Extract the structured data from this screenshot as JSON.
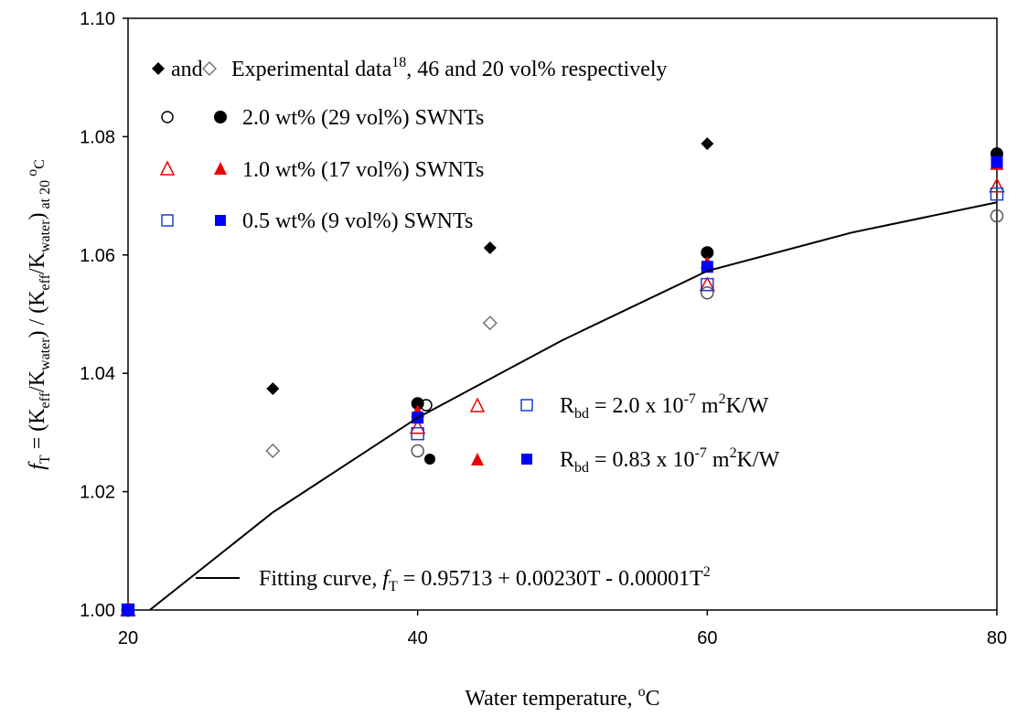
{
  "chart_data": {
    "type": "scatter",
    "xlim": [
      20,
      80
    ],
    "ylim": [
      1.0,
      1.1
    ],
    "xticks": [
      20,
      40,
      60,
      80
    ],
    "yticks": [
      {
        "value": 1.0,
        "label": "1.00"
      },
      1.02,
      1.04,
      1.06,
      1.08,
      {
        "value": 1.1,
        "label": "1.10"
      }
    ],
    "x_label": [
      "Water temperature, ",
      "o",
      "C"
    ],
    "y_label": [
      "f",
      "T",
      " = (K",
      "eff",
      "/K",
      "water",
      ") / (K",
      "eff",
      "/K",
      "water",
      ")",
      " at 20 ",
      "o",
      "C"
    ],
    "legend_text": {
      "experimental": [
        "and",
        "Experimental data",
        "18",
        ", 46 and 20 vol% respectively"
      ],
      "swnt_2_0": "2.0 wt% (29 vol%) SWNTs",
      "swnt_1_0": "1.0 wt% (17 vol%) SWNTs",
      "swnt_0_5": "0.5 wt% (9 vol%) SWNTs",
      "rbd_open": [
        "R",
        "bd",
        " = 2.0 x 10",
        "-7",
        " m",
        "2",
        "K/W"
      ],
      "rbd_filled": [
        "R",
        "bd",
        " = 0.83 x 10",
        "-7",
        " m",
        "2",
        "K/W"
      ],
      "fit": [
        "Fitting curve, ",
        "f",
        "T",
        " = 0.95713 + 0.00230T - 0.00001T",
        "2"
      ]
    },
    "series": [
      {
        "marker": "diamond",
        "filled": false,
        "color": "#777777",
        "x": [
          20,
          30,
          45
        ],
        "values": [
          1.0,
          1.0269,
          1.0485
        ]
      },
      {
        "marker": "circle",
        "filled": false,
        "color": "#555555",
        "x": [
          20,
          40,
          60,
          80
        ],
        "values": [
          1.0,
          1.0269,
          1.0536,
          1.0666
        ]
      },
      {
        "marker": "triangle",
        "filled": false,
        "color": "#ee0000",
        "x": [
          20,
          40,
          60,
          80
        ],
        "values": [
          1.0,
          1.0308,
          1.0549,
          1.0716
        ]
      },
      {
        "marker": "square",
        "filled": false,
        "color": "#1f3fcf",
        "x": [
          20,
          40,
          60,
          80
        ],
        "values": [
          1.0,
          1.0298,
          1.055,
          1.0703
        ]
      },
      {
        "marker": "diamond",
        "filled": true,
        "color": "#000000",
        "x": [
          20,
          30,
          45,
          60
        ],
        "values": [
          1.0,
          1.0374,
          1.0612,
          1.0788
        ]
      },
      {
        "marker": "circle",
        "filled": true,
        "color": "#000000",
        "x": [
          20,
          40,
          60,
          80
        ],
        "values": [
          1.0,
          1.0349,
          1.0604,
          1.0771
        ]
      },
      {
        "marker": "triangle",
        "filled": true,
        "color": "#ee0000",
        "x": [
          20,
          40,
          60,
          80
        ],
        "values": [
          1.0,
          1.0335,
          1.0586,
          1.0753
        ]
      },
      {
        "marker": "square",
        "filled": true,
        "color": "#0000ff",
        "x": [
          20,
          40,
          60,
          80
        ],
        "values": [
          1.0,
          1.0325,
          1.058,
          1.0757
        ]
      },
      {
        "mode": "line",
        "color": "#000000",
        "x": [
          21.5,
          30,
          40,
          50,
          60,
          70,
          80
        ],
        "values": [
          1.0,
          1.0165,
          1.0325,
          1.0456,
          1.0573,
          1.0638,
          1.0689
        ]
      }
    ]
  }
}
